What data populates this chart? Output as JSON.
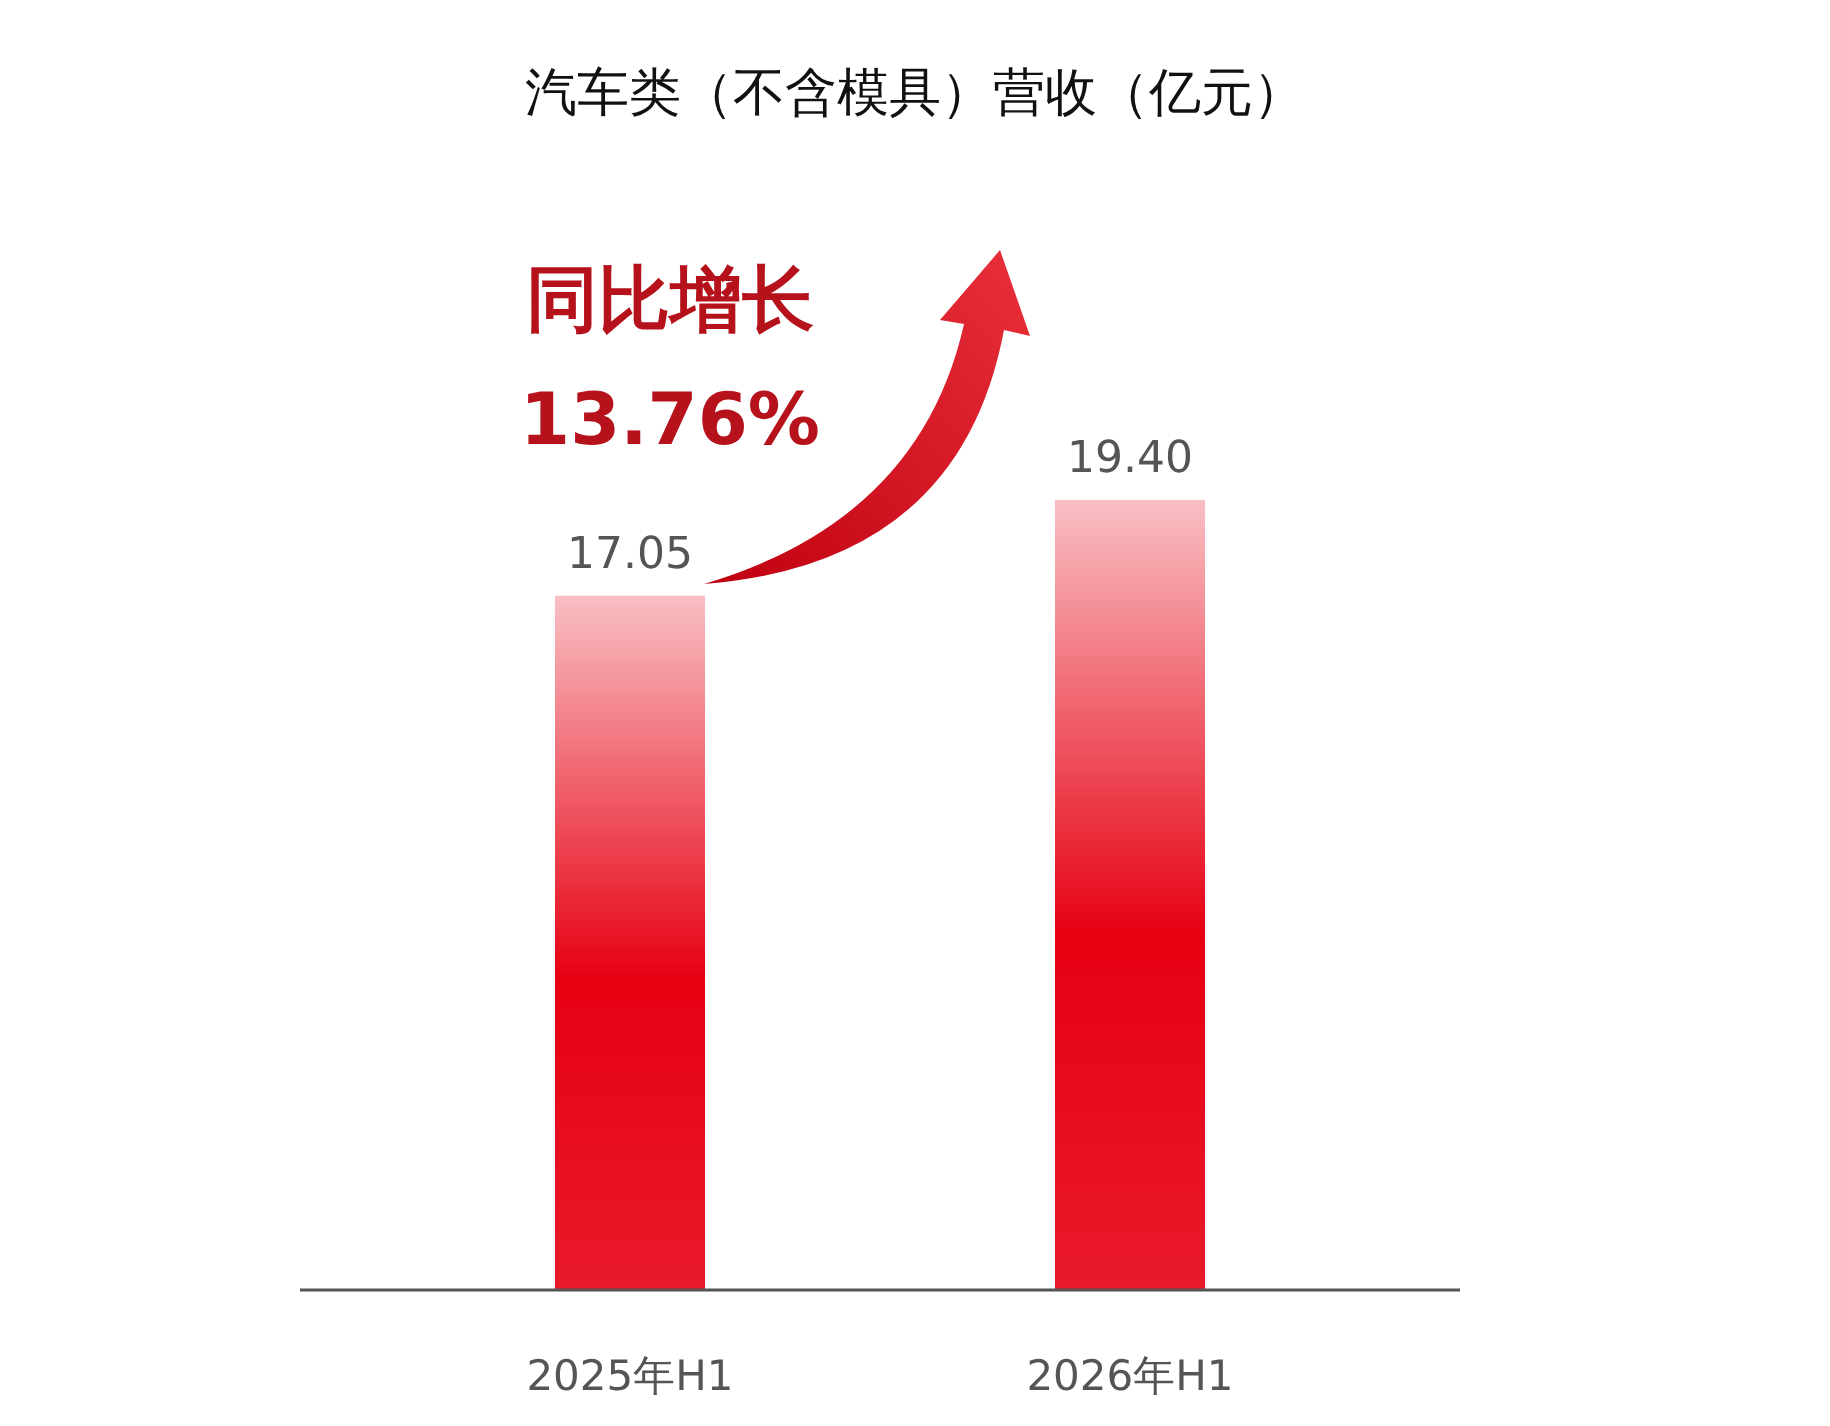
{
  "chart_data": {
    "type": "bar",
    "title": "汽车类（不含模具）营收（亿元）",
    "categories": [
      "2025年H1",
      "2026年H1"
    ],
    "values": [
      17.05,
      19.4
    ],
    "value_labels": [
      "17.05",
      "19.40"
    ],
    "color": "#e60012",
    "annotations": [
      "同比增长",
      "13.76%"
    ],
    "grid": false
  }
}
